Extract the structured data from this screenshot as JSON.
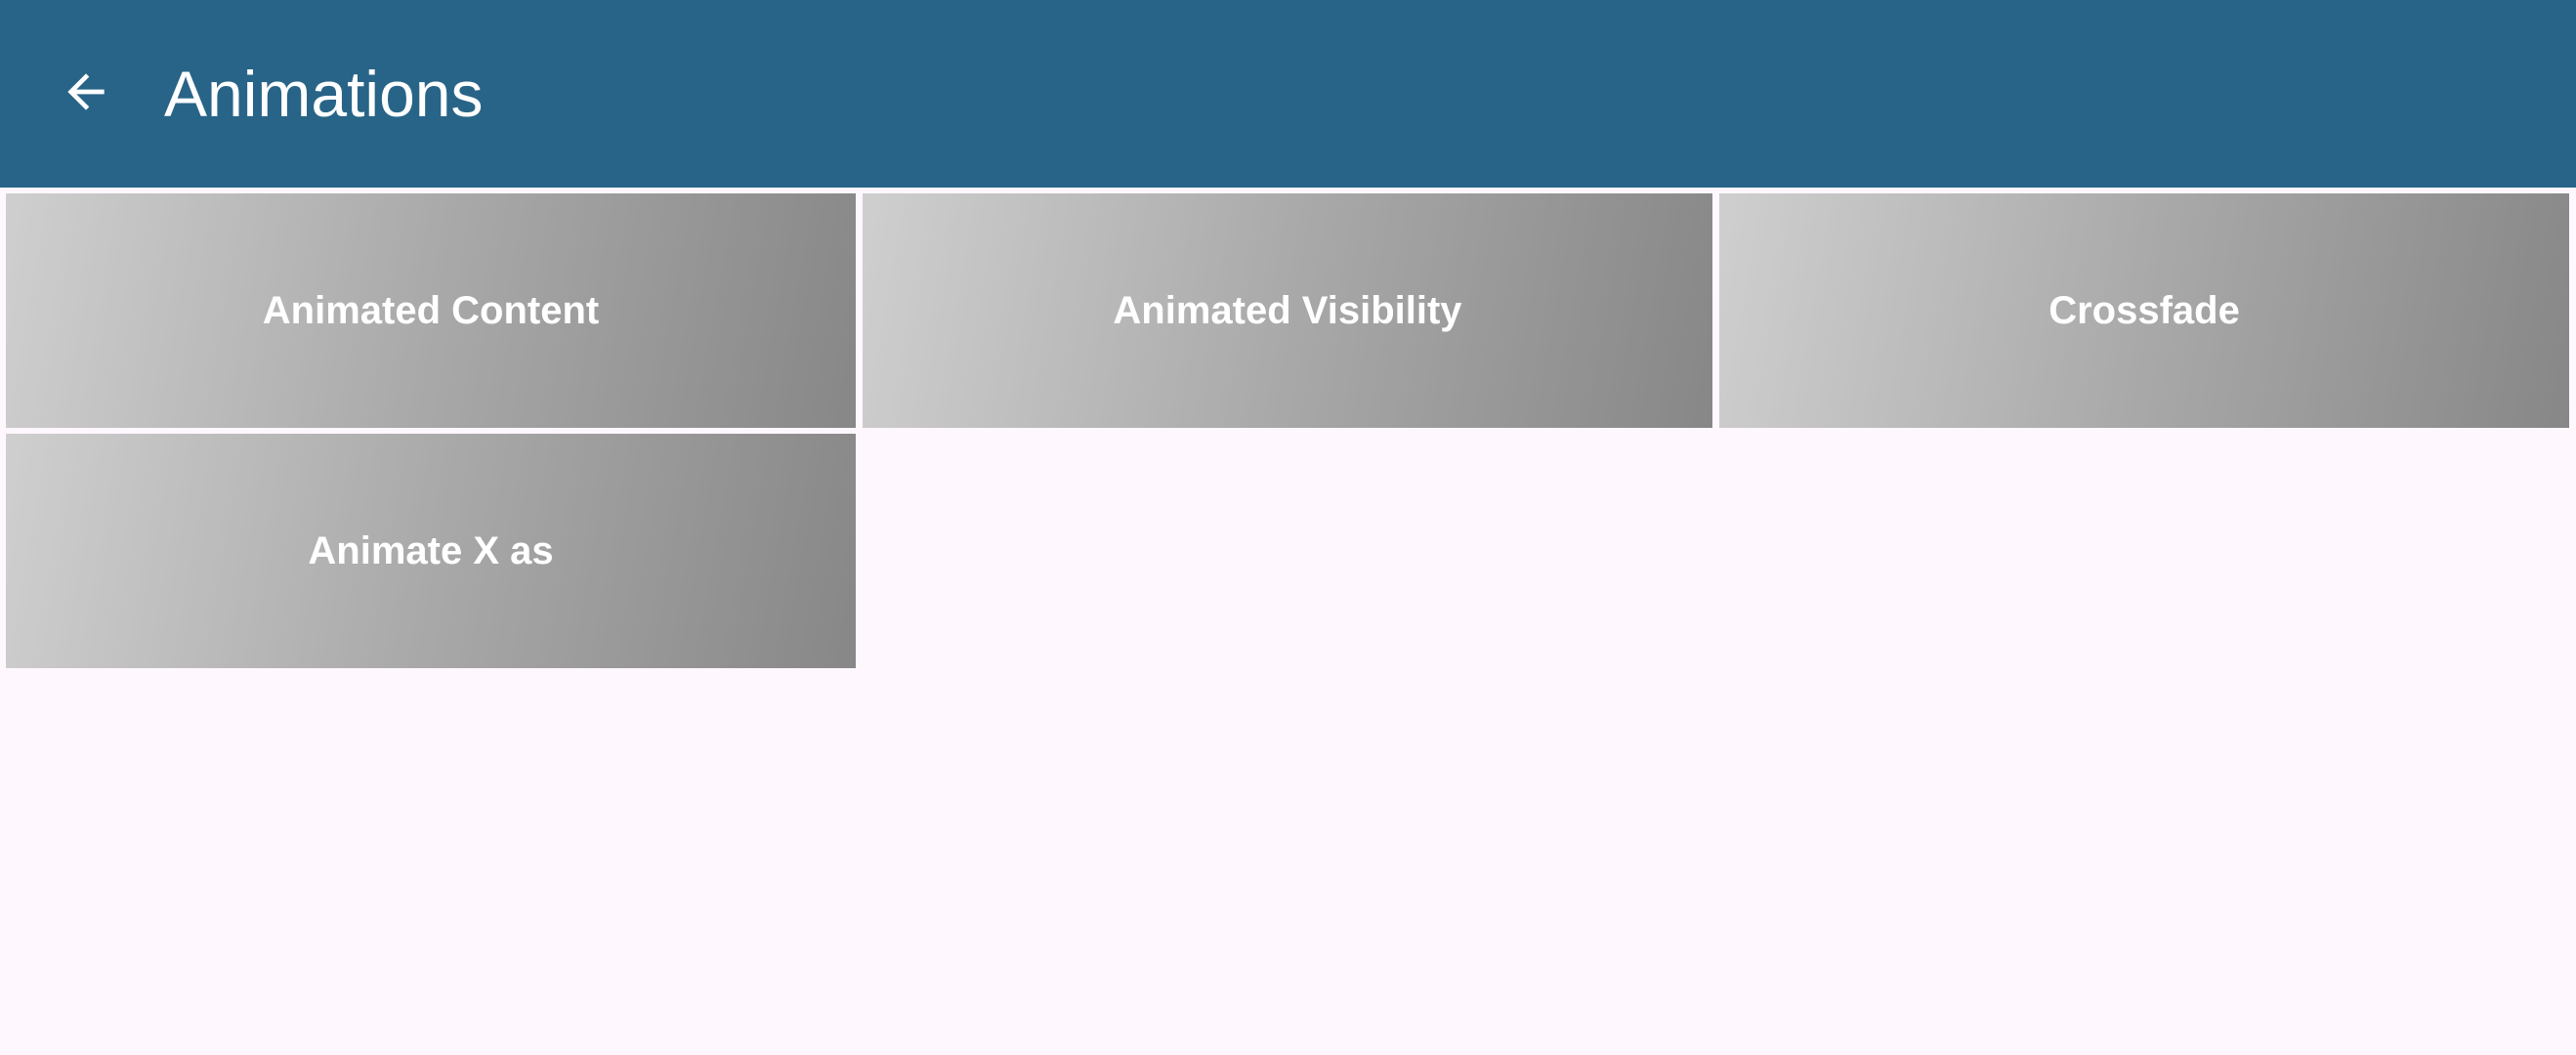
{
  "app_bar": {
    "title": "Animations",
    "back_icon": "arrow-back-icon",
    "background_color": "#286487",
    "text_color": "#ffffff"
  },
  "page": {
    "background_color": "#fff7fe"
  },
  "tiles": [
    {
      "label": "Animated Content"
    },
    {
      "label": "Animated Visibility"
    },
    {
      "label": "Crossfade"
    },
    {
      "label": "Animate X as"
    }
  ],
  "tile_gradient": {
    "start_color": "#cfcfcf",
    "end_color": "#878787"
  }
}
